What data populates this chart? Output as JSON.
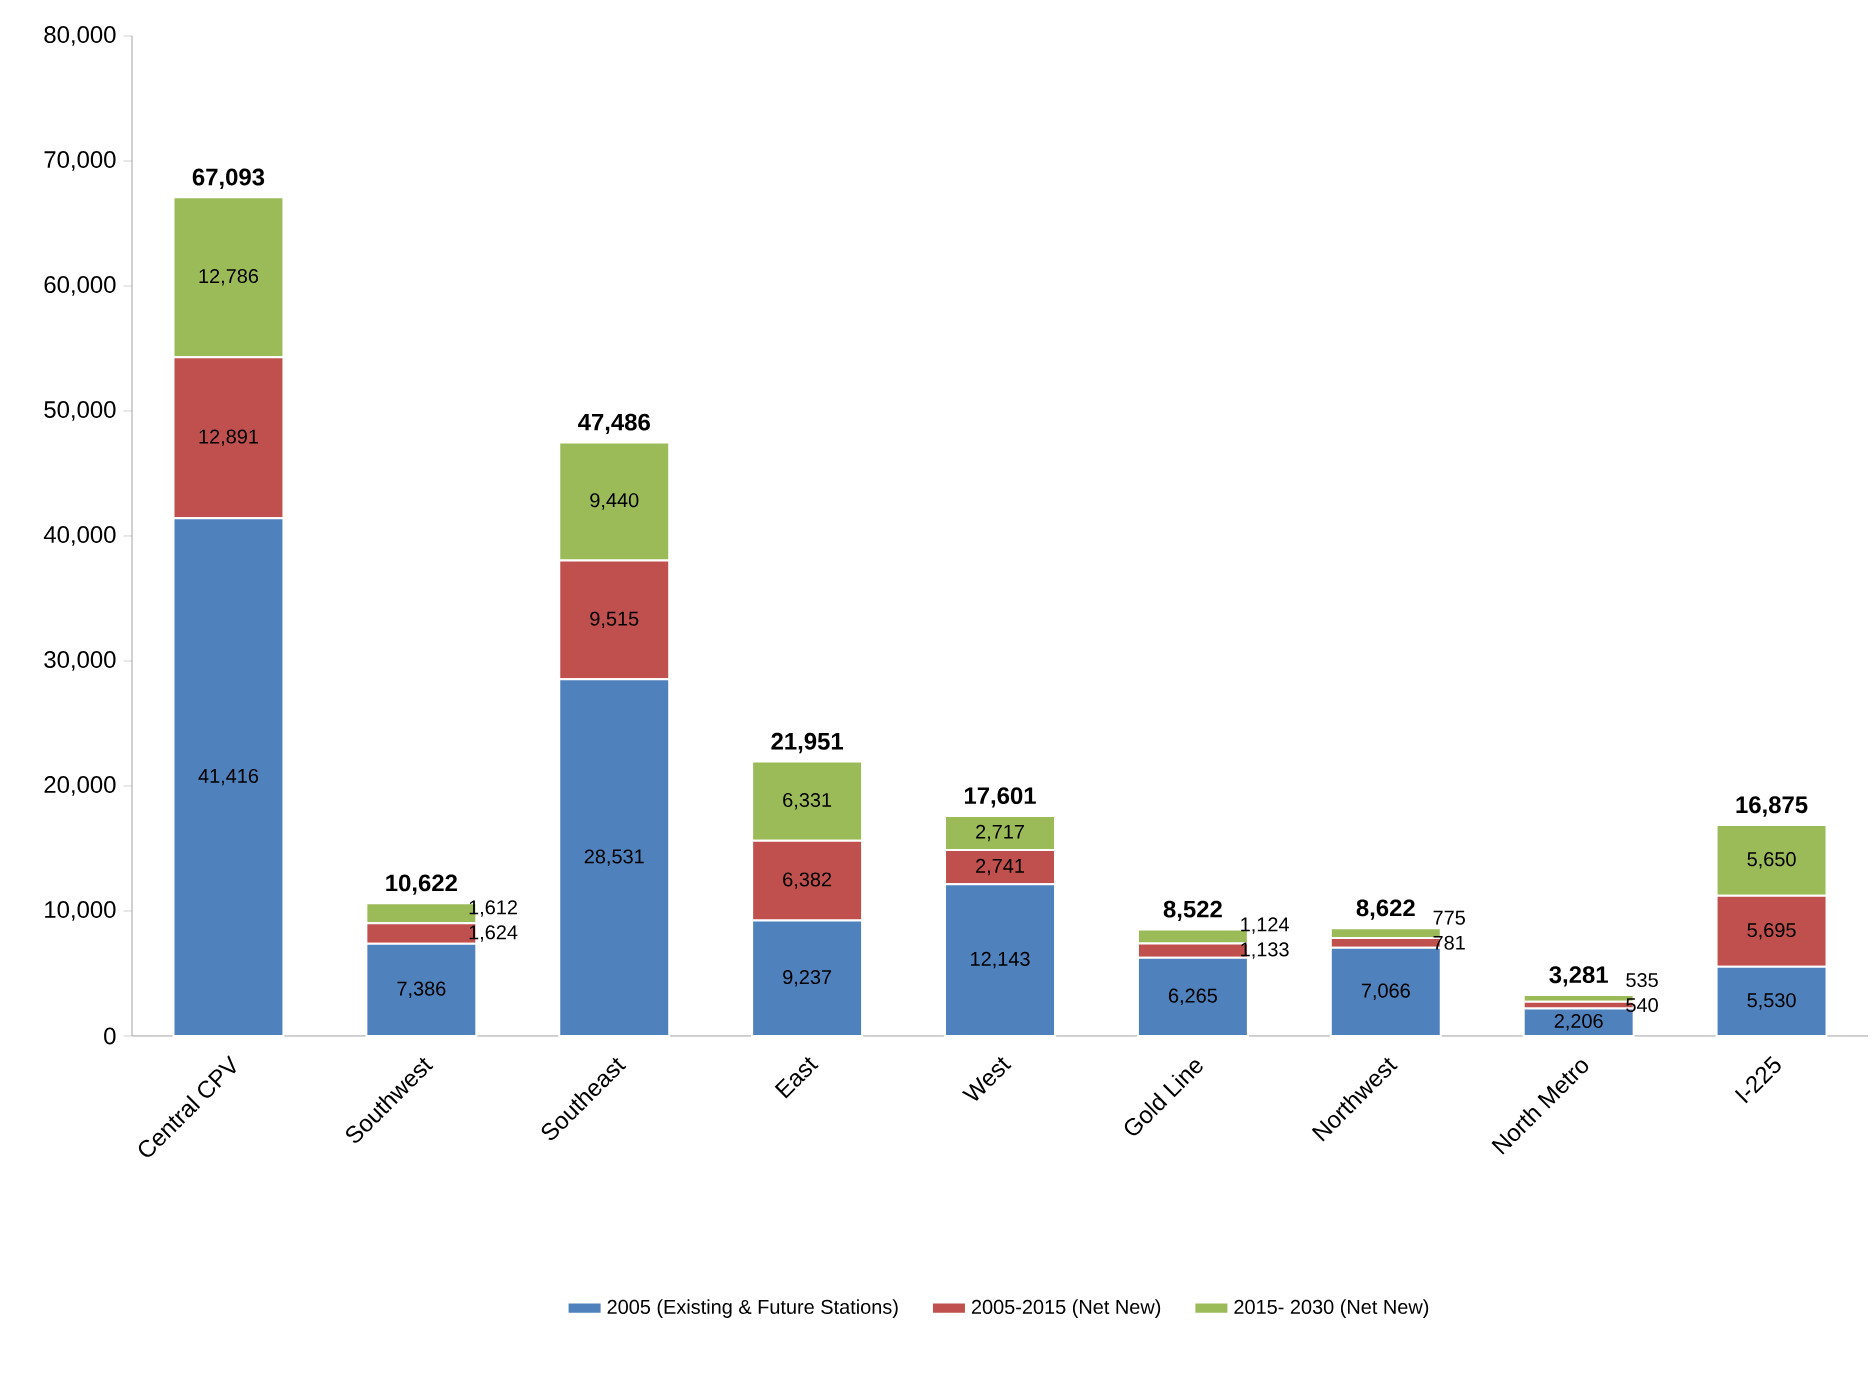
{
  "chart_data": {
    "type": "bar",
    "stacked": true,
    "categories": [
      "Central CPV",
      "Southwest",
      "Southeast",
      "East",
      "West",
      "Gold Line",
      "Northwest",
      "North Metro",
      "I-225"
    ],
    "series": [
      {
        "name": "2005 (Existing & Future Stations)",
        "color": "#4f81bd",
        "values": [
          41416,
          7386,
          28531,
          9237,
          12143,
          6265,
          7066,
          2206,
          5530
        ],
        "value_labels": [
          "41,416",
          "7,386",
          "28,531",
          "9,237",
          "12,143",
          "6,265",
          "7,066",
          "2,206",
          "5,530"
        ]
      },
      {
        "name": "2005-2015 (Net New)",
        "color": "#c0504d",
        "values": [
          12891,
          1624,
          9515,
          6382,
          2741,
          1133,
          781,
          540,
          5695
        ],
        "value_labels": [
          "12,891",
          "1,624",
          "9,515",
          "6,382",
          "2,741",
          "1,133",
          "781",
          "540",
          "5,695"
        ]
      },
      {
        "name": "2015- 2030 (Net New)",
        "color": "#9bbb59",
        "values": [
          12786,
          1612,
          9440,
          6331,
          2717,
          1124,
          775,
          535,
          5650
        ],
        "value_labels": [
          "12,786",
          "1,612",
          "9,440",
          "6,331",
          "2,717",
          "1,124",
          "775",
          "535",
          "5,650"
        ]
      }
    ],
    "totals": [
      "67,093",
      "10,622",
      "47,486",
      "21,951",
      "17,601",
      "8,522",
      "8,622",
      "3,281",
      "16,875"
    ],
    "ylim": [
      0,
      80000
    ],
    "yticks": [
      {
        "value": 0,
        "label": "0"
      },
      {
        "value": 10000,
        "label": "10,000"
      },
      {
        "value": 20000,
        "label": "20,000"
      },
      {
        "value": 30000,
        "label": "30,000"
      },
      {
        "value": 40000,
        "label": "40,000"
      },
      {
        "value": 50000,
        "label": "50,000"
      },
      {
        "value": 60000,
        "label": "60,000"
      },
      {
        "value": 70000,
        "label": "70,000"
      },
      {
        "value": 80000,
        "label": "80,000"
      }
    ],
    "grid": false,
    "legend": "bottom"
  }
}
